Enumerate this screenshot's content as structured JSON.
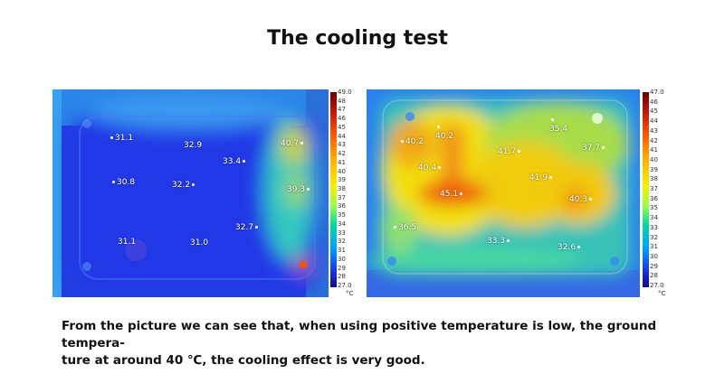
{
  "title": "The cooling test",
  "left_image": {
    "scale": {
      "max": "49.0",
      "min": "27.0",
      "ticks": [
        "48",
        "47",
        "46",
        "45",
        "44",
        "43",
        "42",
        "41",
        "40",
        "39",
        "38",
        "37",
        "36",
        "35",
        "34",
        "33",
        "32",
        "31",
        "30",
        "29",
        "28"
      ],
      "unit": "°C"
    },
    "readings": [
      "31.1",
      "32.9",
      "40.7",
      "33.4",
      "30.8",
      "32.2",
      "39.3",
      "32.7",
      "31.1",
      "31.0"
    ]
  },
  "right_image": {
    "scale": {
      "max": "47.0",
      "min": "27.0",
      "ticks": [
        "46",
        "45",
        "44",
        "43",
        "42",
        "41",
        "40",
        "39",
        "38",
        "37",
        "36",
        "35",
        "34",
        "33",
        "32",
        "31",
        "30",
        "29",
        "28"
      ],
      "unit": "°C"
    },
    "readings": [
      "40.2",
      "35.4",
      "40.2",
      "37.7",
      "41.7",
      "40.4",
      "41.9",
      "45.1",
      "40.3",
      "36.5",
      "33.3",
      "32.6"
    ]
  },
  "caption": {
    "line1": "From the picture we can see that, when using positive temperature is low, the ground tempera-",
    "line2": "ture at around 40 ℃, the cooling effect is very good."
  }
}
